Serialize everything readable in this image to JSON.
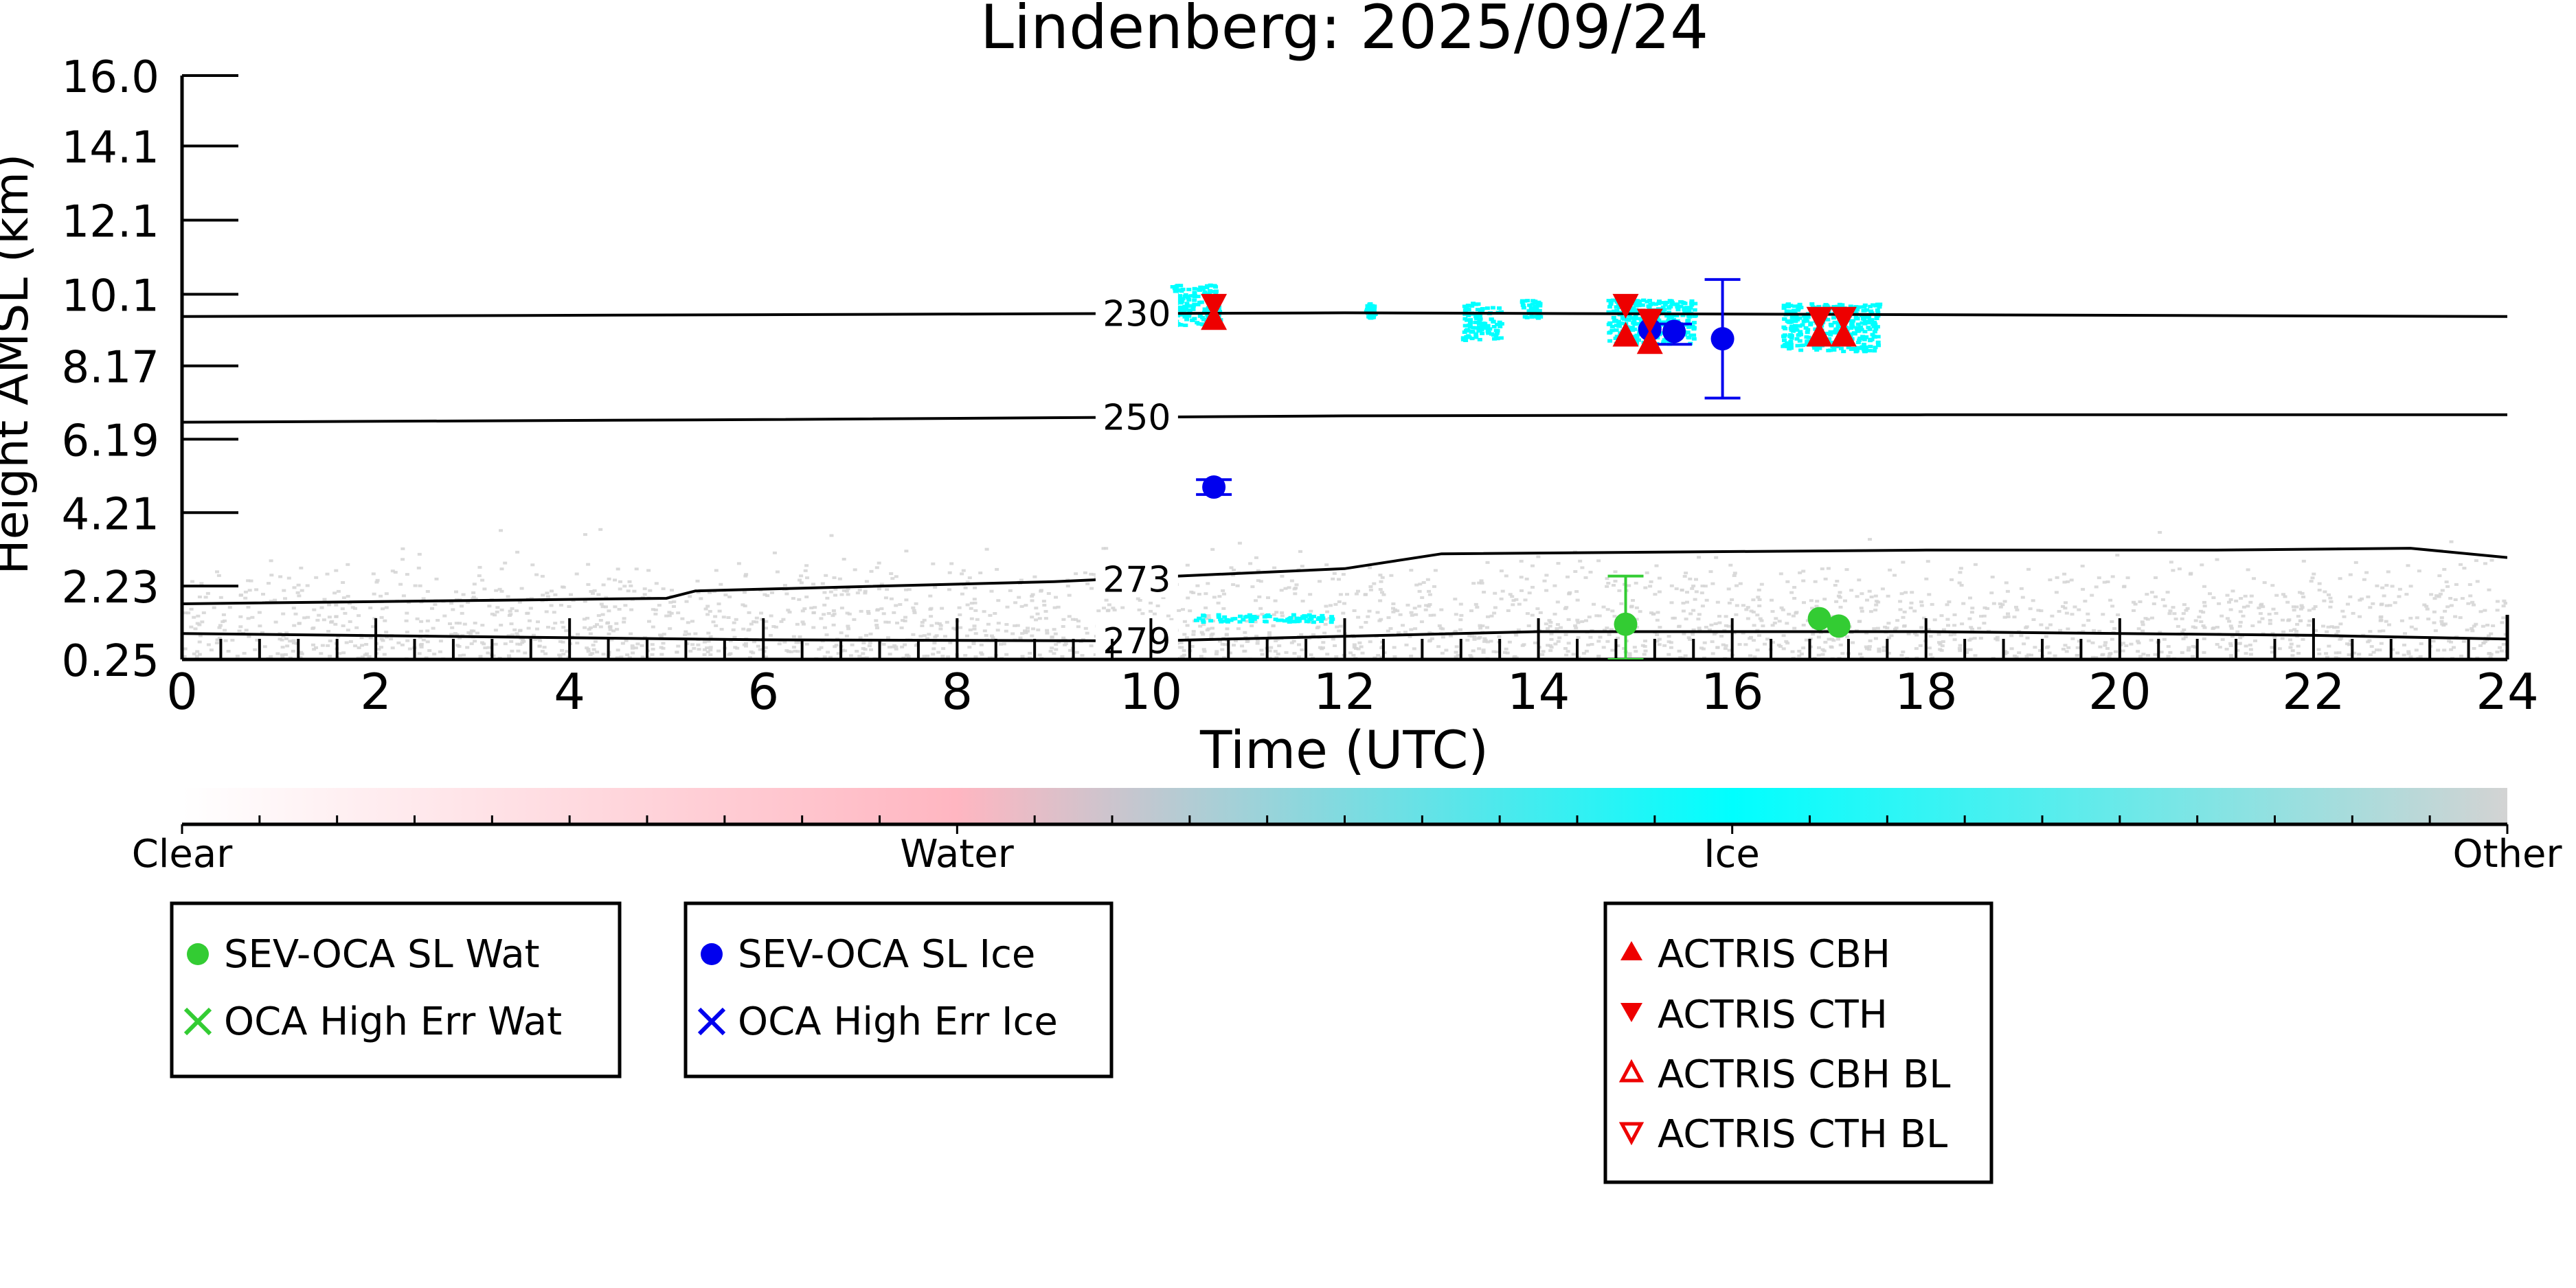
{
  "chart_data": {
    "type": "scatter",
    "title": "Lindenberg: 2025/09/24",
    "xlabel": "Time (UTC)",
    "ylabel": "Height AMSL (km)",
    "xlim": [
      0,
      24
    ],
    "ylim": [
      0.25,
      16.0
    ],
    "x_ticks": [
      0,
      2,
      4,
      6,
      8,
      10,
      12,
      14,
      16,
      18,
      20,
      22,
      24
    ],
    "y_ticks": [
      0.25,
      2.23,
      4.21,
      6.19,
      8.17,
      10.1,
      12.1,
      14.1,
      16.0
    ],
    "y_tick_labels": [
      "0.25",
      "2.23",
      "4.21",
      "6.19",
      "8.17",
      "10.1",
      "12.1",
      "14.1",
      "16.0"
    ],
    "grid": false,
    "background_classification": {
      "colorbar_labels": [
        "Clear",
        "Water",
        "Ice",
        "Other"
      ],
      "colors": {
        "Clear": "#ffffff",
        "Water": "#ffb6c1",
        "Ice": "#00ffff",
        "Other": "#d3d3d3"
      },
      "ice_cloud_patches": [
        {
          "x": [
            10.2,
            10.7
          ],
          "y": [
            9.3,
            10.4
          ]
        },
        {
          "x": [
            12.2,
            12.3
          ],
          "y": [
            9.5,
            9.9
          ]
        },
        {
          "x": [
            13.2,
            13.6
          ],
          "y": [
            8.9,
            9.9
          ]
        },
        {
          "x": [
            13.8,
            14.0
          ],
          "y": [
            9.5,
            10.0
          ]
        },
        {
          "x": [
            14.7,
            15.6
          ],
          "y": [
            8.8,
            10.0
          ]
        },
        {
          "x": [
            16.5,
            17.5
          ],
          "y": [
            8.6,
            9.9
          ]
        },
        {
          "x": [
            10.4,
            11.9
          ],
          "y": [
            1.3,
            1.5
          ]
        }
      ],
      "other_region": {
        "x": [
          0,
          24
        ],
        "y_top_km": 3.0
      }
    },
    "isotherms": [
      {
        "label": "230",
        "label_x": 9.5,
        "x": [
          0,
          6,
          12,
          18,
          24
        ],
        "y": [
          9.5,
          9.55,
          9.6,
          9.55,
          9.5
        ]
      },
      {
        "label": "250",
        "label_x": 9.5,
        "x": [
          0,
          6,
          12,
          18,
          24
        ],
        "y": [
          6.65,
          6.72,
          6.82,
          6.85,
          6.85
        ]
      },
      {
        "label": "273",
        "label_x": 9.5,
        "x": [
          0,
          5,
          5.3,
          9,
          12,
          13,
          18,
          21,
          23,
          24
        ],
        "y": [
          1.75,
          1.9,
          2.1,
          2.35,
          2.7,
          3.1,
          3.2,
          3.2,
          3.25,
          3.0
        ]
      },
      {
        "label": "279",
        "label_x": 9.5,
        "x": [
          0,
          6,
          10,
          14,
          18,
          22,
          24
        ],
        "y": [
          0.95,
          0.78,
          0.75,
          1.0,
          1.0,
          0.9,
          0.8
        ]
      }
    ],
    "series": [
      {
        "name": "SEV-OCA SL Wat",
        "marker": "circle",
        "color": "#33cc33",
        "points": [
          {
            "x": 14.9,
            "y": 1.2,
            "err_low": 0.25,
            "err_high": 2.5
          },
          {
            "x": 16.9,
            "y": 1.35,
            "err_low": 1.35,
            "err_high": 1.35
          },
          {
            "x": 17.1,
            "y": 1.15,
            "err_low": 1.1,
            "err_high": 1.15
          }
        ]
      },
      {
        "name": "OCA High Err Wat",
        "marker": "x",
        "color": "#33cc33",
        "points": []
      },
      {
        "name": "SEV-OCA SL Ice",
        "marker": "circle",
        "color": "#0000ee",
        "points": [
          {
            "x": 10.65,
            "y": 4.9,
            "err_low": 4.7,
            "err_high": 5.1
          },
          {
            "x": 15.15,
            "y": 9.15,
            "err_low": 9.15,
            "err_high": 9.15
          },
          {
            "x": 15.4,
            "y": 9.1,
            "err_low": 8.75,
            "err_high": 9.3
          },
          {
            "x": 15.9,
            "y": 8.9,
            "err_low": 7.3,
            "err_high": 10.5
          }
        ]
      },
      {
        "name": "OCA High Err Ice",
        "marker": "x",
        "color": "#0000ee",
        "points": []
      },
      {
        "name": "ACTRIS CBH",
        "marker": "triangle-up",
        "color": "#ee0000",
        "points": [
          {
            "x": 10.65,
            "y": 9.4
          },
          {
            "x": 14.9,
            "y": 8.95
          },
          {
            "x": 15.15,
            "y": 8.75
          },
          {
            "x": 16.9,
            "y": 8.95
          },
          {
            "x": 17.15,
            "y": 8.95
          }
        ]
      },
      {
        "name": "ACTRIS CTH",
        "marker": "triangle-down",
        "color": "#ee0000",
        "points": [
          {
            "x": 10.65,
            "y": 9.85
          },
          {
            "x": 14.9,
            "y": 9.85
          },
          {
            "x": 15.15,
            "y": 9.45
          },
          {
            "x": 16.9,
            "y": 9.5
          },
          {
            "x": 17.15,
            "y": 9.5
          }
        ]
      },
      {
        "name": "ACTRIS CBH BL",
        "marker": "triangle-up-open",
        "color": "#ee0000",
        "points": []
      },
      {
        "name": "ACTRIS CTH BL",
        "marker": "triangle-down-open",
        "color": "#ee0000",
        "points": []
      }
    ],
    "legends": [
      {
        "placement": "bottom-left",
        "entries": [
          "SEV-OCA SL Wat",
          "OCA High Err Wat"
        ]
      },
      {
        "placement": "bottom-left-center",
        "entries": [
          "SEV-OCA SL Ice",
          "OCA High Err Ice"
        ]
      },
      {
        "placement": "bottom-right-center",
        "entries": [
          "ACTRIS CBH",
          "ACTRIS CTH",
          "ACTRIS CBH BL",
          "ACTRIS CTH BL"
        ]
      }
    ]
  }
}
